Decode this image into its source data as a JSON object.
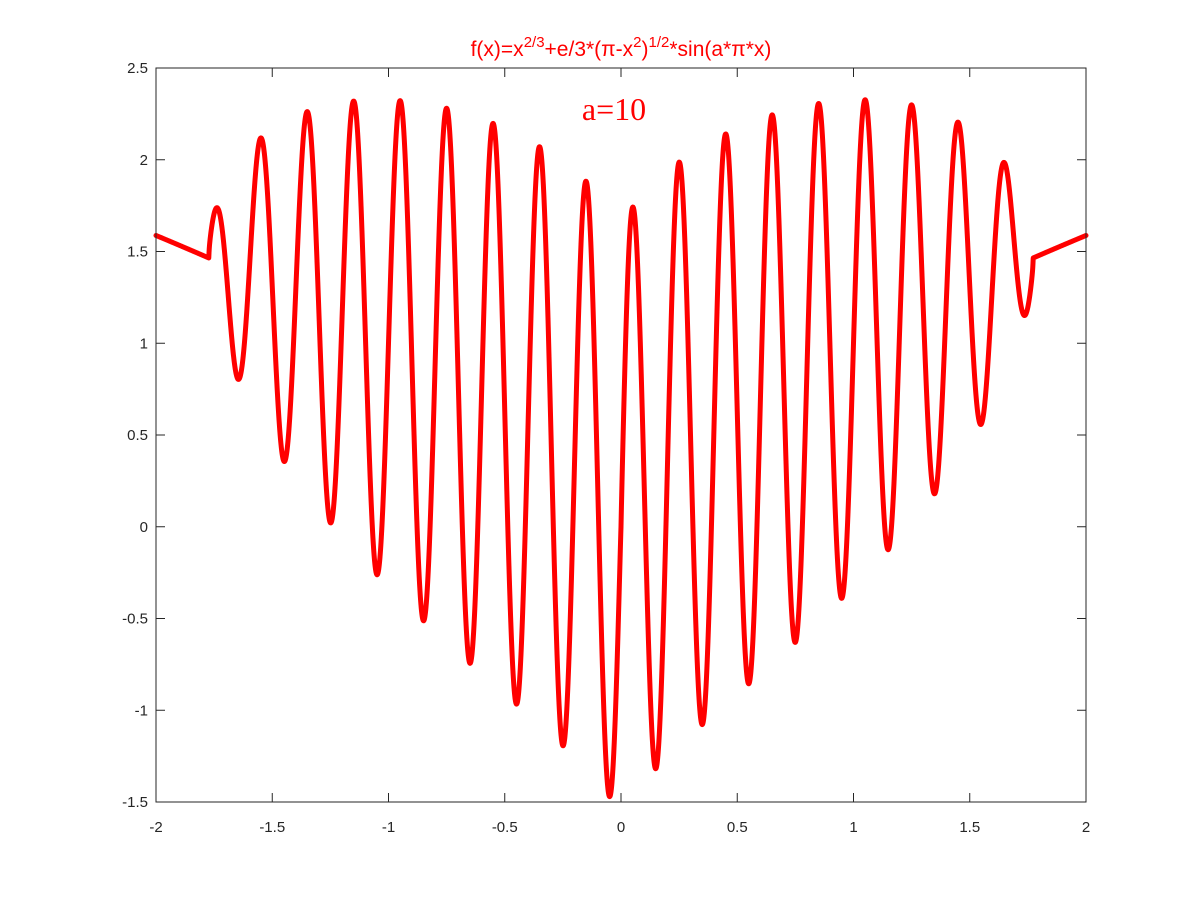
{
  "chart_data": {
    "type": "line",
    "title": {
      "parts": [
        {
          "t": "f(x)=x"
        },
        {
          "t": "2/3",
          "sup": true
        },
        {
          "t": "+e/3*(π-x"
        },
        {
          "t": "2",
          "sup": true
        },
        {
          "t": ")"
        },
        {
          "t": "1/2",
          "sup": true
        },
        {
          "t": "*sin(a*π*x)"
        }
      ]
    },
    "annotation": "a=10",
    "xlim": [
      -2,
      2
    ],
    "ylim": [
      -1.5,
      2.5
    ],
    "xticks": [
      -2,
      -1.5,
      -1,
      -0.5,
      0,
      0.5,
      1,
      1.5,
      2
    ],
    "xtick_labels": [
      "-2",
      "-1.5",
      "-1",
      "-0.5",
      "0",
      "0.5",
      "1",
      "1.5",
      "2"
    ],
    "yticks": [
      -1.5,
      -1,
      -0.5,
      0,
      0.5,
      1,
      1.5,
      2,
      2.5
    ],
    "ytick_labels": [
      "-1.5",
      "-1",
      "-0.5",
      "0",
      "0.5",
      "1",
      "1.5",
      "2",
      "2.5"
    ],
    "grid": false,
    "series": [
      {
        "function": "x^(2/3) + e/3*sqrt(π - x^2)*sin(a*π*x)",
        "a": 10,
        "x_range": [
          -2,
          2
        ],
        "color": "#ff0000"
      }
    ]
  }
}
